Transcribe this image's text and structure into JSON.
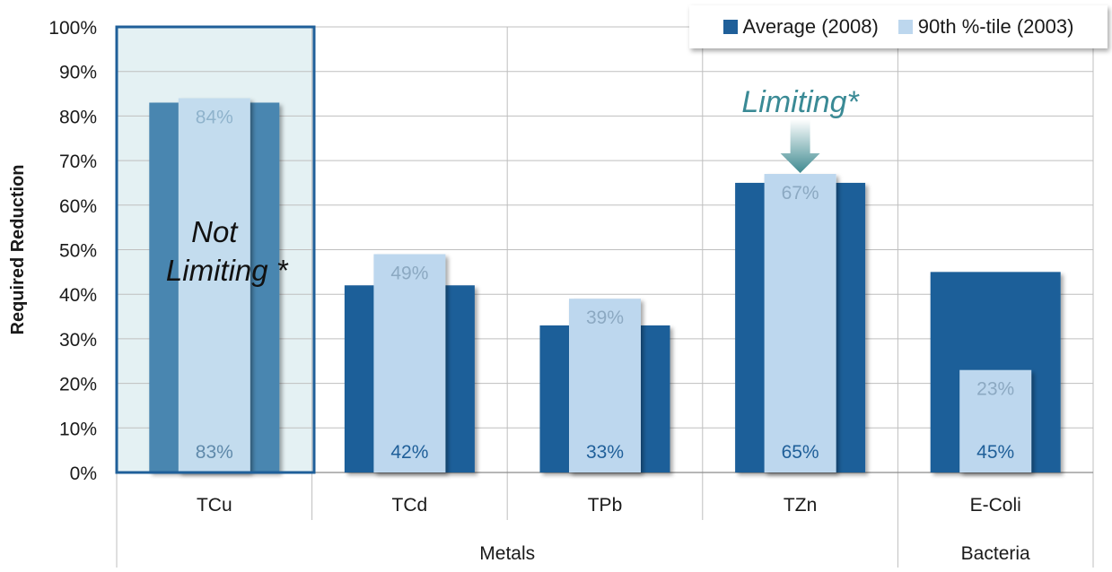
{
  "chart_data": {
    "type": "bar",
    "ylabel": "Required Reduction",
    "ylim": [
      0,
      100
    ],
    "y_ticks": [
      "0%",
      "10%",
      "20%",
      "30%",
      "40%",
      "50%",
      "60%",
      "70%",
      "80%",
      "90%",
      "100%"
    ],
    "categories": [
      "TCu",
      "TCd",
      "TPb",
      "TZn",
      "E-Coli"
    ],
    "groups": [
      {
        "label": "Metals",
        "categories": [
          "TCu",
          "TCd",
          "TPb",
          "TZn"
        ]
      },
      {
        "label": "Bacteria",
        "categories": [
          "E-Coli"
        ]
      }
    ],
    "series": [
      {
        "name": "Average (2008)",
        "color": "#1f5f99",
        "values": [
          83,
          42,
          33,
          65,
          45
        ],
        "data_labels": [
          "83%",
          "42%",
          "33%",
          "65%",
          "45%"
        ]
      },
      {
        "name": "90th %-tile (2003)",
        "color": "#bdd7ee",
        "values": [
          84,
          49,
          39,
          67,
          23
        ],
        "data_labels": [
          "84%",
          "49%",
          "39%",
          "67%",
          "23%"
        ]
      }
    ],
    "annotations": [
      {
        "text_lines": [
          "Not",
          "Limiting *"
        ],
        "category": "TCu"
      },
      {
        "text": "Limiting*",
        "category": "TZn"
      }
    ],
    "grid": true,
    "legend_position": "top-right",
    "highlight_color": "#e4f1f3",
    "highlight_border": "#1f5f99"
  }
}
